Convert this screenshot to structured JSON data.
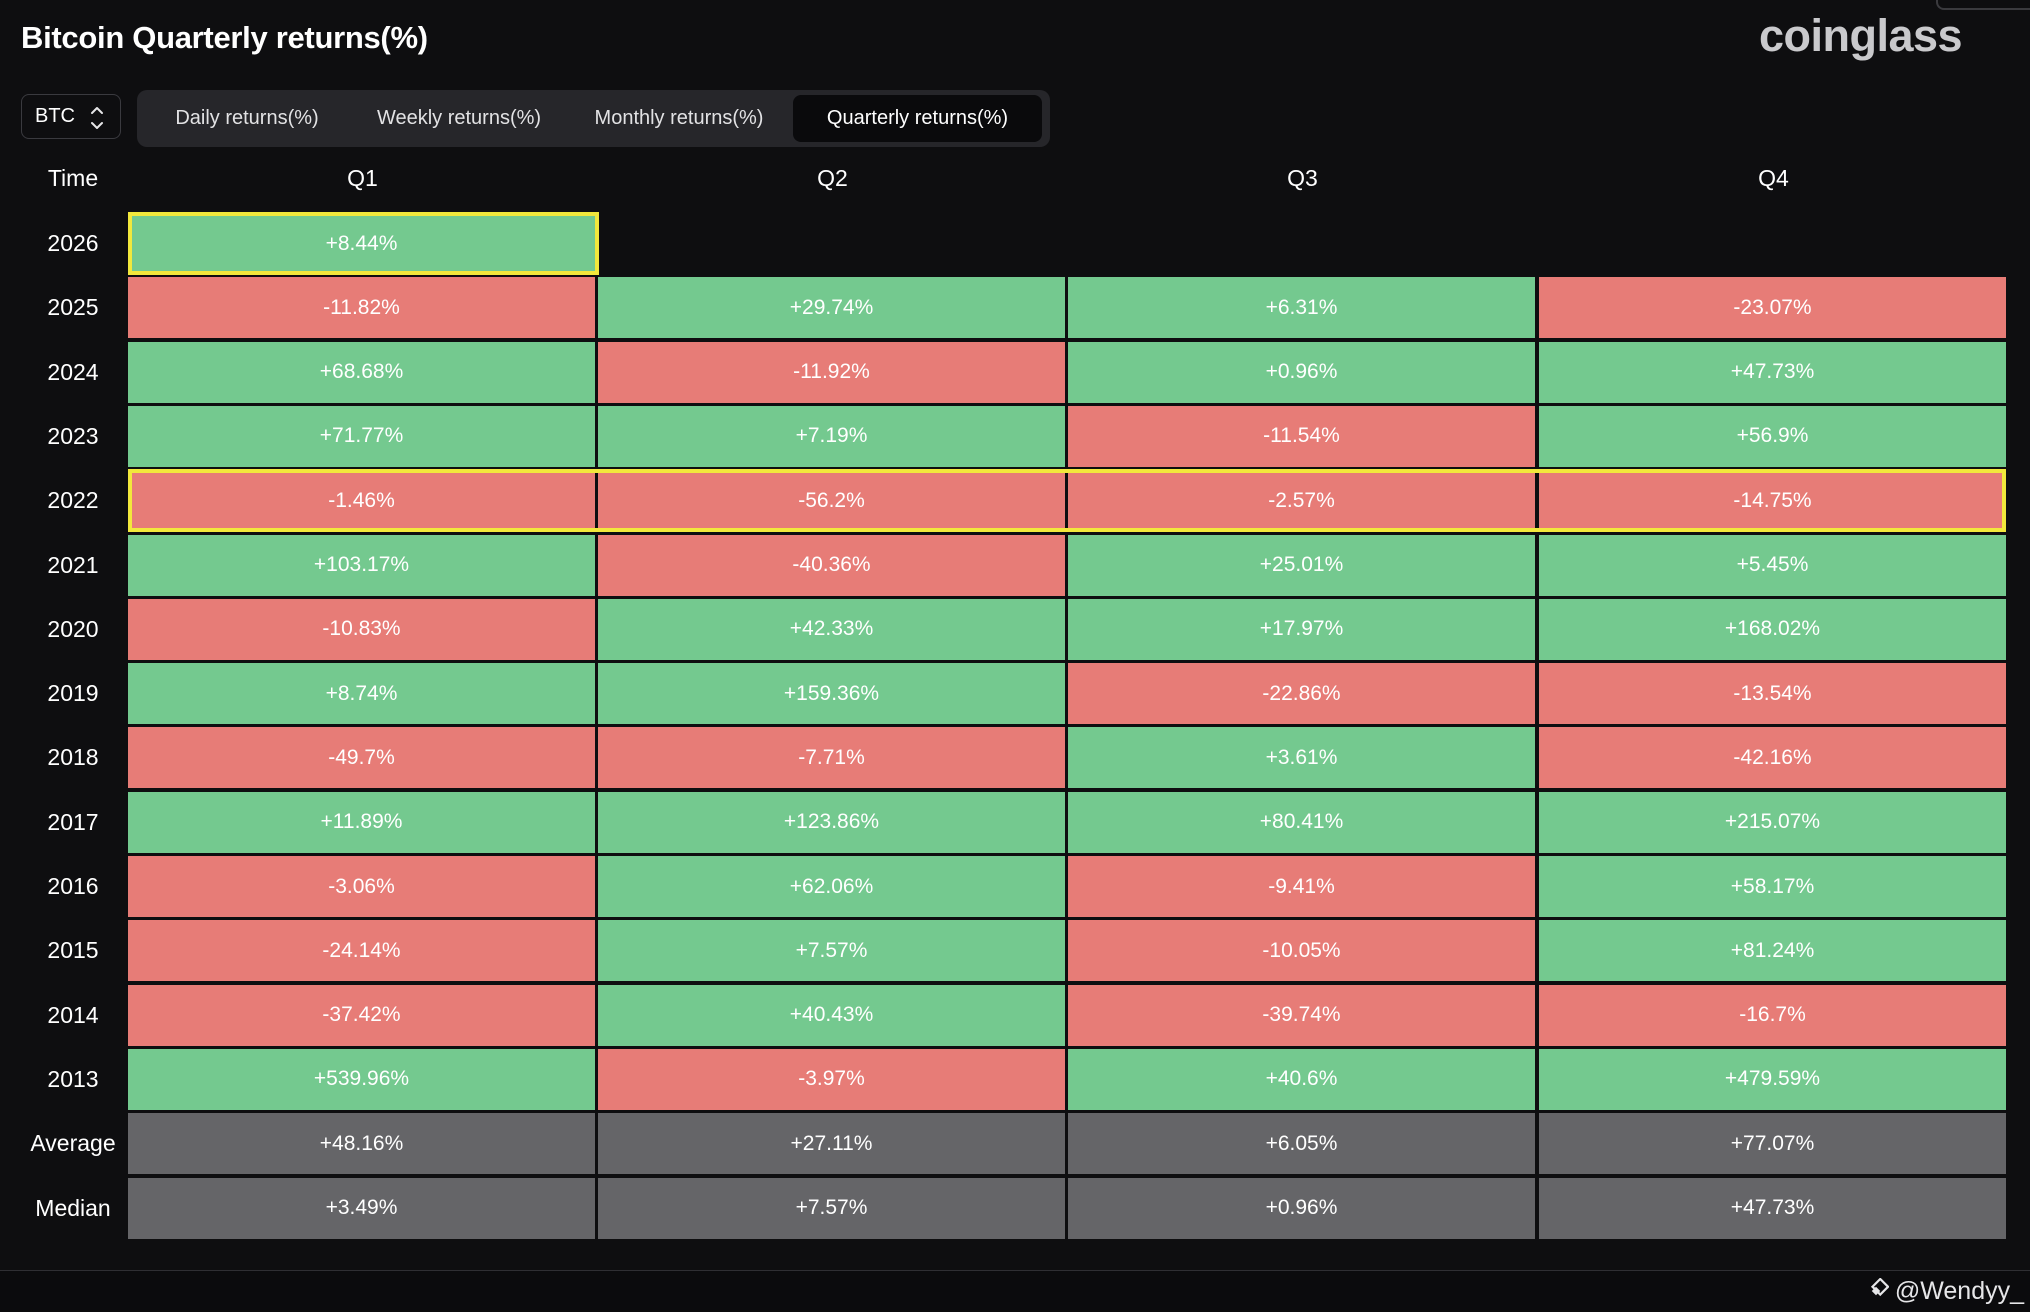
{
  "title": "Bitcoin Quarterly returns(%)",
  "logo_text": "coinglass",
  "coin_selector": {
    "value": "BTC"
  },
  "tabs": [
    {
      "label": "Daily returns(%)",
      "active": false
    },
    {
      "label": "Weekly returns(%)",
      "active": false
    },
    {
      "label": "Monthly returns(%)",
      "active": false
    },
    {
      "label": "Quarterly returns(%)",
      "active": true
    }
  ],
  "colors": {
    "positive": "#74c98f",
    "negative": "#e77c77",
    "stat": "#656568",
    "highlight": "#f2e83c"
  },
  "chart_data": {
    "type": "table",
    "columns": [
      "Time",
      "Q1",
      "Q2",
      "Q3",
      "Q4"
    ],
    "rows": [
      {
        "year": "2026",
        "values": [
          "+8.44%",
          "",
          "",
          ""
        ],
        "highlight": "cell"
      },
      {
        "year": "2025",
        "values": [
          "-11.82%",
          "+29.74%",
          "+6.31%",
          "-23.07%"
        ]
      },
      {
        "year": "2024",
        "values": [
          "+68.68%",
          "-11.92%",
          "+0.96%",
          "+47.73%"
        ]
      },
      {
        "year": "2023",
        "values": [
          "+71.77%",
          "+7.19%",
          "-11.54%",
          "+56.9%"
        ]
      },
      {
        "year": "2022",
        "values": [
          "-1.46%",
          "-56.2%",
          "-2.57%",
          "-14.75%"
        ],
        "highlight": "row"
      },
      {
        "year": "2021",
        "values": [
          "+103.17%",
          "-40.36%",
          "+25.01%",
          "+5.45%"
        ]
      },
      {
        "year": "2020",
        "values": [
          "-10.83%",
          "+42.33%",
          "+17.97%",
          "+168.02%"
        ]
      },
      {
        "year": "2019",
        "values": [
          "+8.74%",
          "+159.36%",
          "-22.86%",
          "-13.54%"
        ]
      },
      {
        "year": "2018",
        "values": [
          "-49.7%",
          "-7.71%",
          "+3.61%",
          "-42.16%"
        ]
      },
      {
        "year": "2017",
        "values": [
          "+11.89%",
          "+123.86%",
          "+80.41%",
          "+215.07%"
        ]
      },
      {
        "year": "2016",
        "values": [
          "-3.06%",
          "+62.06%",
          "-9.41%",
          "+58.17%"
        ]
      },
      {
        "year": "2015",
        "values": [
          "-24.14%",
          "+7.57%",
          "-10.05%",
          "+81.24%"
        ]
      },
      {
        "year": "2014",
        "values": [
          "-37.42%",
          "+40.43%",
          "-39.74%",
          "-16.7%"
        ]
      },
      {
        "year": "2013",
        "values": [
          "+539.96%",
          "-3.97%",
          "+40.6%",
          "+479.59%"
        ]
      }
    ],
    "summary": [
      {
        "label": "Average",
        "values": [
          "+48.16%",
          "+27.11%",
          "+6.05%",
          "+77.07%"
        ]
      },
      {
        "label": "Median",
        "values": [
          "+3.49%",
          "+7.57%",
          "+0.96%",
          "+47.73%"
        ]
      }
    ]
  },
  "watermark": {
    "text": "@Wendyy_",
    "icon": "binance-square-icon"
  }
}
